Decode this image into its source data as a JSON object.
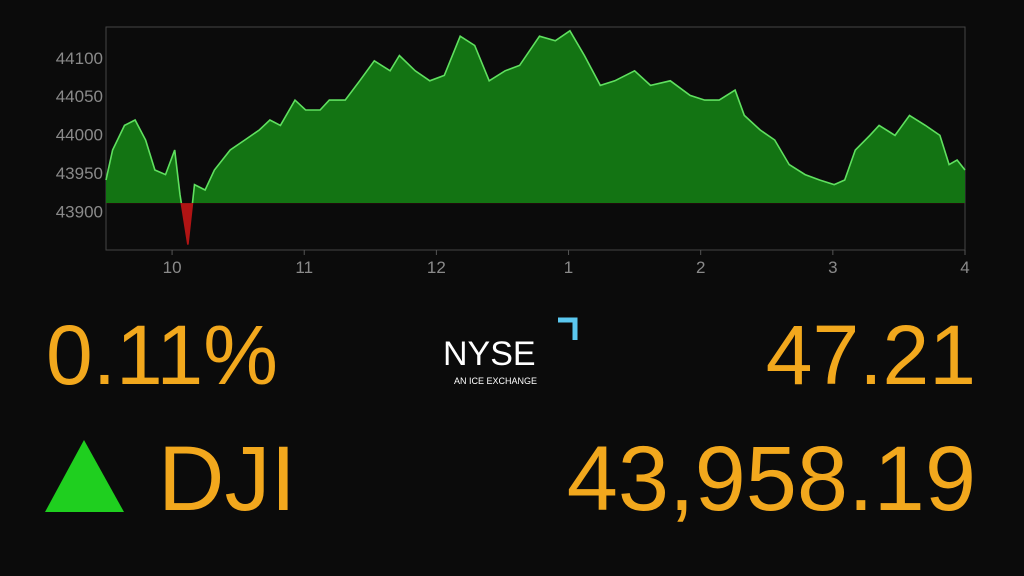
{
  "chart_data": {
    "type": "area",
    "x": [
      9.5,
      9.55,
      9.64,
      9.72,
      9.8,
      9.87,
      9.95,
      10.02,
      10.06,
      10.12,
      10.17,
      10.25,
      10.32,
      10.44,
      10.55,
      10.66,
      10.74,
      10.82,
      10.93,
      11.01,
      11.12,
      11.19,
      11.31,
      11.42,
      11.53,
      11.65,
      11.72,
      11.84,
      11.95,
      12.06,
      12.18,
      12.29,
      12.4,
      12.52,
      12.63,
      12.78,
      12.9,
      13.01,
      13.12,
      13.24,
      13.35,
      13.5,
      13.62,
      13.77,
      13.92,
      14.03,
      14.14,
      14.26,
      14.33,
      14.45,
      14.56,
      14.67,
      14.79,
      14.9,
      15.01,
      15.09,
      15.17,
      15.28,
      15.35,
      15.47,
      15.58,
      15.7,
      15.81,
      15.88,
      15.94,
      16.0
    ],
    "values": [
      43941,
      43980,
      44012,
      44019,
      43993,
      43954,
      43948,
      43980,
      43922,
      43857,
      43935,
      43928,
      43954,
      43980,
      43993,
      44006,
      44019,
      44012,
      44045,
      44032,
      44032,
      44045,
      44045,
      44070,
      44096,
      44083,
      44103,
      44083,
      44070,
      44077,
      44128,
      44116,
      44070,
      44083,
      44090,
      44128,
      44122,
      44135,
      44103,
      44064,
      44070,
      44083,
      44064,
      44070,
      44051,
      44045,
      44045,
      44058,
      44025,
      44006,
      43993,
      43961,
      43948,
      43941,
      43935,
      43941,
      43980,
      43999,
      44012,
      43999,
      44025,
      44012,
      43999,
      43961,
      43967,
      43954
    ],
    "baseline": 43911,
    "color": "#137413",
    "line_color": "#5fe05f",
    "negative_color": "#b01414",
    "xlim": [
      9.5,
      16
    ],
    "ylim": [
      43850,
      44140
    ],
    "xticks": [
      10,
      11,
      12,
      {
        "value": 13,
        "label": "1"
      },
      {
        "value": 14,
        "label": "2"
      },
      {
        "value": 15,
        "label": "3"
      },
      {
        "value": 16,
        "label": "4"
      }
    ],
    "yticks": [
      43900,
      43950,
      44000,
      44050,
      44100
    ]
  },
  "quote": {
    "change_percent": "0.11%",
    "change": "47.21",
    "symbol": "DJI",
    "price": "43,958.19"
  },
  "logo": {
    "name": "NYSE",
    "tagline": "AN ICE EXCHANGE"
  }
}
